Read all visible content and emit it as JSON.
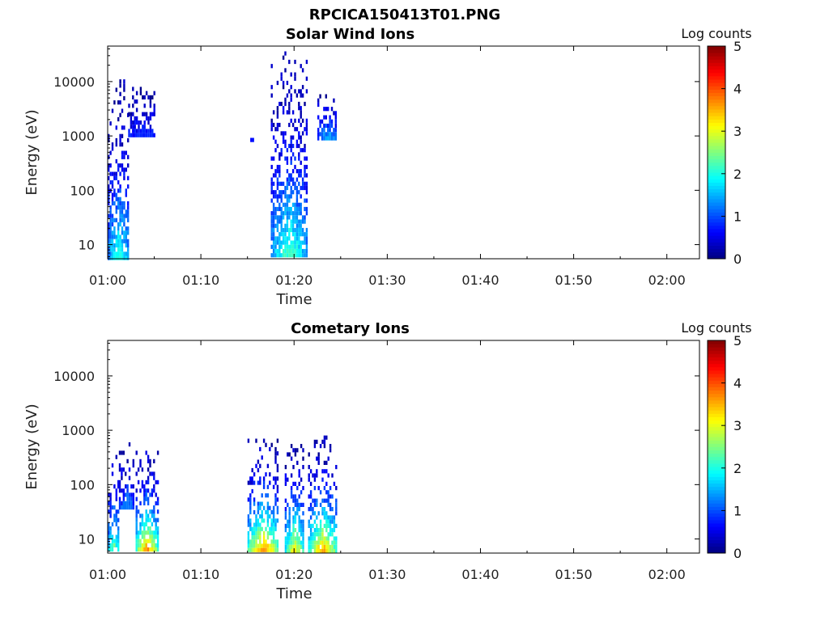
{
  "figure_title": "RPCICA150413T01.PNG",
  "chart_data": [
    {
      "type": "heatmap",
      "title": "Solar Wind Ions",
      "xlabel": "Time",
      "ylabel": "Energy (eV)",
      "x_ticks": [
        "01:00",
        "01:10",
        "01:20",
        "01:30",
        "01:40",
        "01:50",
        "02:00"
      ],
      "x_tick_minutes": [
        0,
        10,
        20,
        30,
        40,
        50,
        60
      ],
      "xlim_minutes": [
        0,
        63.5
      ],
      "y_scale": "log",
      "y_ticks": [
        "10",
        "100",
        "1000",
        "10000"
      ],
      "y_tick_values": [
        10,
        100,
        1000,
        10000
      ],
      "ylim": [
        5.5,
        45000
      ],
      "colorbar": {
        "label": "Log counts",
        "ticks": [
          "0",
          "1",
          "2",
          "3",
          "4",
          "5"
        ],
        "range": [
          0,
          5
        ],
        "colormap": "jet"
      },
      "bursts": [
        {
          "t_start_min": 0.0,
          "t_end_min": 2.2,
          "e_min_ev": 6,
          "e_max_ev": 11000,
          "peak_log_counts": 2.0
        },
        {
          "t_start_min": 2.2,
          "t_end_min": 5.0,
          "e_min_ev": 1000,
          "e_max_ev": 8000,
          "peak_log_counts": 0.8
        },
        {
          "t_start_min": 15.3,
          "t_end_min": 15.6,
          "e_min_ev": 900,
          "e_max_ev": 1100,
          "peak_log_counts": 0.8
        },
        {
          "t_start_min": 17.5,
          "t_end_min": 21.3,
          "e_min_ev": 6,
          "e_max_ev": 36000,
          "peak_log_counts": 2.2
        },
        {
          "t_start_min": 22.5,
          "t_end_min": 24.5,
          "e_min_ev": 900,
          "e_max_ev": 7000,
          "peak_log_counts": 1.5
        }
      ]
    },
    {
      "type": "heatmap",
      "title": "Cometary Ions",
      "xlabel": "Time",
      "ylabel": "Energy (eV)",
      "x_ticks": [
        "01:00",
        "01:10",
        "01:20",
        "01:30",
        "01:40",
        "01:50",
        "02:00"
      ],
      "x_tick_minutes": [
        0,
        10,
        20,
        30,
        40,
        50,
        60
      ],
      "xlim_minutes": [
        0,
        63.5
      ],
      "y_scale": "log",
      "y_ticks": [
        "10",
        "100",
        "1000",
        "10000"
      ],
      "y_tick_values": [
        10,
        100,
        1000,
        10000
      ],
      "ylim": [
        5.5,
        45000
      ],
      "colorbar": {
        "label": "Log counts",
        "ticks": [
          "0",
          "1",
          "2",
          "3",
          "4",
          "5"
        ],
        "range": [
          0,
          5
        ],
        "colormap": "jet"
      },
      "bursts": [
        {
          "t_start_min": 0.0,
          "t_end_min": 1.2,
          "e_min_ev": 6,
          "e_max_ev": 600,
          "peak_log_counts": 2.5
        },
        {
          "t_start_min": 1.2,
          "t_end_min": 2.8,
          "e_min_ev": 40,
          "e_max_ev": 600,
          "peak_log_counts": 1.2
        },
        {
          "t_start_min": 3.0,
          "t_end_min": 5.3,
          "e_min_ev": 6,
          "e_max_ev": 600,
          "peak_log_counts": 3.8
        },
        {
          "t_start_min": 15.0,
          "t_end_min": 18.3,
          "e_min_ev": 6,
          "e_max_ev": 700,
          "peak_log_counts": 3.8
        },
        {
          "t_start_min": 19.0,
          "t_end_min": 21.0,
          "e_min_ev": 6,
          "e_max_ev": 800,
          "peak_log_counts": 3.2
        },
        {
          "t_start_min": 21.5,
          "t_end_min": 24.5,
          "e_min_ev": 6,
          "e_max_ev": 800,
          "peak_log_counts": 3.6
        }
      ]
    }
  ]
}
